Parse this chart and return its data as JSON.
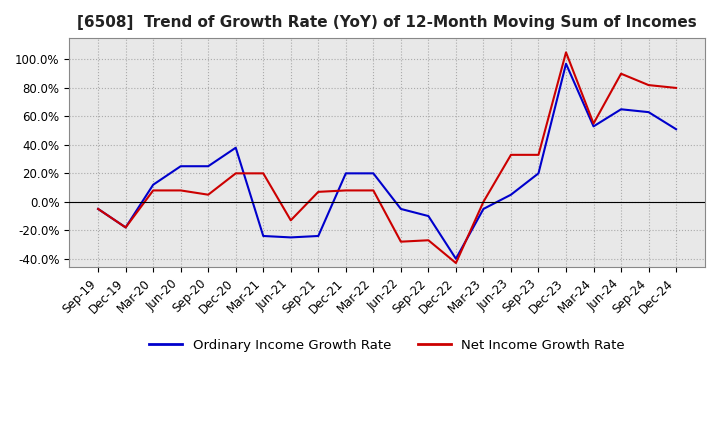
{
  "title": "[6508]  Trend of Growth Rate (YoY) of 12-Month Moving Sum of Incomes",
  "title_fontsize": 11,
  "tick_fontsize": 8.5,
  "background_color": "#ffffff",
  "grid_color": "#aaaaaa",
  "ordinary_color": "#0000cc",
  "net_color": "#cc0000",
  "legend_labels": [
    "Ordinary Income Growth Rate",
    "Net Income Growth Rate"
  ],
  "x_labels": [
    "Sep-19",
    "Dec-19",
    "Mar-20",
    "Jun-20",
    "Sep-20",
    "Dec-20",
    "Mar-21",
    "Jun-21",
    "Sep-21",
    "Dec-21",
    "Mar-22",
    "Jun-22",
    "Sep-22",
    "Dec-22",
    "Mar-23",
    "Jun-23",
    "Sep-23",
    "Dec-23",
    "Mar-24",
    "Jun-24",
    "Sep-24",
    "Dec-24"
  ],
  "ordinary": [
    -5,
    -18,
    12,
    25,
    25,
    38,
    -24,
    -25,
    -24,
    20,
    20,
    -5,
    -10,
    -40,
    -5,
    5,
    20,
    97,
    53,
    65,
    63,
    51
  ],
  "net": [
    -5,
    -18,
    8,
    8,
    5,
    20,
    20,
    -13,
    7,
    8,
    8,
    -28,
    -27,
    -43,
    0,
    33,
    33,
    105,
    55,
    90,
    82,
    80
  ],
  "ylim": [
    -46,
    115
  ],
  "yticks": [
    -40,
    -20,
    0,
    20,
    40,
    60,
    80,
    100
  ],
  "figsize": [
    7.2,
    4.4
  ],
  "dpi": 100
}
